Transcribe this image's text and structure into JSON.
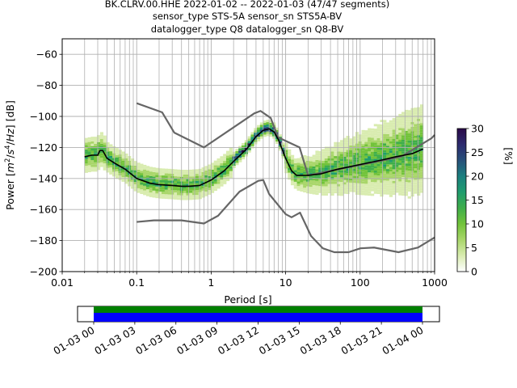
{
  "chart_data": {
    "type": "heatmap",
    "title_lines": [
      "BK.CLRV.00.HHE   2022-01-02 -- 2022-01-03  (47/47 segments)",
      "sensor_type STS-5A sensor_sn STS5A-BV",
      "datalogger_type Q8 datalogger_sn Q8-BV"
    ],
    "xlabel": "Period [s]",
    "ylabel": "Power [m²/s⁴/Hz] [dB]",
    "xscale": "log",
    "xlim": [
      0.01,
      1000
    ],
    "ylim": [
      -200,
      -50
    ],
    "grid": true,
    "x_ticks": [
      0.01,
      0.1,
      1,
      10,
      100,
      1000
    ],
    "x_tick_labels": [
      "0.01",
      "0.1",
      "1",
      "10",
      "100",
      "1000"
    ],
    "y_ticks": [
      -200,
      -180,
      -160,
      -140,
      -120,
      -100,
      -80,
      -60
    ],
    "y_tick_labels": [
      "−200",
      "−180",
      "−160",
      "−140",
      "−120",
      "−100",
      "−80",
      "−60"
    ],
    "colorbar": {
      "label": "[%]",
      "range": [
        0,
        30
      ],
      "ticks": [
        0,
        5,
        10,
        15,
        20,
        25,
        30
      ],
      "tick_labels": [
        "0",
        "5",
        "10",
        "15",
        "20",
        "25",
        "30"
      ],
      "colormap": [
        "#ffffff",
        "#d9ecb0",
        "#a9d66a",
        "#72c33a",
        "#3fae4a",
        "#1f9c6e",
        "#1b7f7f",
        "#27507a",
        "#2c2a6e",
        "#2a0a48"
      ]
    },
    "series": [
      {
        "role": "mode",
        "color": "#000000",
        "points": [
          [
            0.02,
            -126
          ],
          [
            0.025,
            -125
          ],
          [
            0.03,
            -125
          ],
          [
            0.032,
            -122
          ],
          [
            0.035,
            -122
          ],
          [
            0.04,
            -127
          ],
          [
            0.05,
            -130
          ],
          [
            0.07,
            -134
          ],
          [
            0.1,
            -140
          ],
          [
            0.15,
            -143
          ],
          [
            0.2,
            -144
          ],
          [
            0.3,
            -144.5
          ],
          [
            0.4,
            -145
          ],
          [
            0.5,
            -145
          ],
          [
            0.7,
            -144.5
          ],
          [
            1,
            -141
          ],
          [
            1.5,
            -135
          ],
          [
            2,
            -129
          ],
          [
            3,
            -121
          ],
          [
            4,
            -113
          ],
          [
            5,
            -109
          ],
          [
            6,
            -108
          ],
          [
            7,
            -110
          ],
          [
            8,
            -115
          ],
          [
            10,
            -127
          ],
          [
            12,
            -135
          ],
          [
            14,
            -138
          ],
          [
            20,
            -138
          ],
          [
            30,
            -137
          ],
          [
            50,
            -134
          ],
          [
            100,
            -131
          ],
          [
            200,
            -128
          ],
          [
            300,
            -126
          ],
          [
            500,
            -124
          ],
          [
            700,
            -121
          ]
        ]
      },
      {
        "role": "high-noise-model",
        "color": "#666666",
        "points": [
          [
            0.1,
            -91.5
          ],
          [
            0.22,
            -97.4
          ],
          [
            0.32,
            -110.5
          ],
          [
            0.8,
            -120
          ],
          [
            3.8,
            -98
          ],
          [
            4.6,
            -96.5
          ],
          [
            6.3,
            -101
          ],
          [
            7.9,
            -113.5
          ],
          [
            15.4,
            -120
          ],
          [
            20,
            -138
          ],
          [
            354,
            -126
          ],
          [
            912,
            -114
          ],
          [
            1000,
            -112
          ]
        ]
      },
      {
        "role": "low-noise-model",
        "color": "#666666",
        "points": [
          [
            0.1,
            -168
          ],
          [
            0.17,
            -167
          ],
          [
            0.4,
            -167
          ],
          [
            0.8,
            -169
          ],
          [
            1.24,
            -164
          ],
          [
            2.4,
            -148.5
          ],
          [
            4.3,
            -141.5
          ],
          [
            5,
            -141
          ],
          [
            6,
            -150
          ],
          [
            10,
            -163
          ],
          [
            12,
            -165
          ],
          [
            15.6,
            -162
          ],
          [
            21.9,
            -177
          ],
          [
            31.6,
            -185
          ],
          [
            45,
            -187.5
          ],
          [
            70,
            -187.5
          ],
          [
            101,
            -185
          ],
          [
            154,
            -184.5
          ],
          [
            328,
            -187.5
          ],
          [
            600,
            -184.5
          ],
          [
            1000,
            -178
          ]
        ]
      }
    ],
    "timeline": {
      "x_tick_labels": [
        "01-03 00",
        "01-03 03",
        "01-03 06",
        "01-03 09",
        "01-03 12",
        "01-03 15",
        "01-03 18",
        "01-03 21",
        "01-04 00"
      ],
      "bar_colors": {
        "data": "#0000ff",
        "gaps_ok": "#008000"
      }
    }
  }
}
